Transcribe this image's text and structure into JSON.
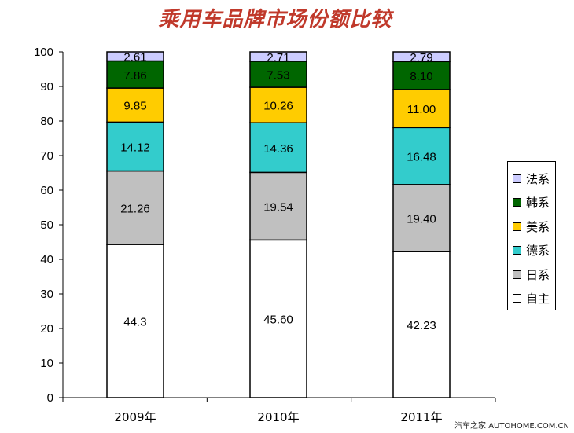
{
  "chart_data": {
    "type": "bar",
    "stacked": true,
    "title": "乘用车品牌市场份额比较",
    "categories": [
      "2009年",
      "2010年",
      "2011年"
    ],
    "ylim": [
      0,
      100
    ],
    "yticks": [
      0,
      10,
      20,
      30,
      40,
      50,
      60,
      70,
      80,
      90,
      100
    ],
    "legend_position": "right",
    "series": [
      {
        "name": "自主",
        "color": "#ffffff",
        "values": [
          44.3,
          45.6,
          42.23
        ],
        "labels": [
          "44.3",
          "45.60",
          "42.23"
        ]
      },
      {
        "name": "日系",
        "color": "#c0c0c0",
        "values": [
          21.26,
          19.54,
          19.4
        ],
        "labels": [
          "21.26",
          "19.54",
          "19.40"
        ]
      },
      {
        "name": "德系",
        "color": "#33cccc",
        "values": [
          14.12,
          14.36,
          16.48
        ],
        "labels": [
          "14.12",
          "14.36",
          "16.48"
        ]
      },
      {
        "name": "美系",
        "color": "#ffcc00",
        "values": [
          9.85,
          10.26,
          11.0
        ],
        "labels": [
          "9.85",
          "10.26",
          "11.00"
        ]
      },
      {
        "name": "韩系",
        "color": "#006600",
        "values": [
          7.86,
          7.53,
          8.1
        ],
        "labels": [
          "7.86",
          "7.53",
          "8.10"
        ]
      },
      {
        "name": "法系",
        "color": "#ccccff",
        "values": [
          2.61,
          2.71,
          2.79
        ],
        "labels": [
          "2.61",
          "2.71",
          "2.79"
        ]
      }
    ]
  },
  "watermark": "汽车之家 AUTOHOME.COM.CN"
}
